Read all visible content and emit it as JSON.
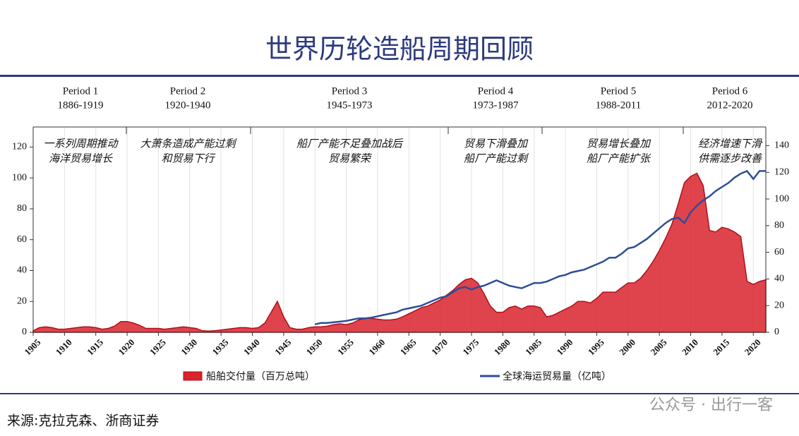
{
  "chart_data": {
    "type": "area_line",
    "title": "世界历轮造船周期回顾",
    "source": "来源:克拉克森、浙商证券",
    "watermark": "公众号 · 出行一客",
    "periods": [
      {
        "name": "Period 1",
        "range": "1886-1919",
        "note": [
          "一系列周期推动",
          "海洋贸易增长"
        ]
      },
      {
        "name": "Period 2",
        "range": "1920-1940",
        "note": [
          "大萧条造成产能过剩",
          "和贸易下行"
        ]
      },
      {
        "name": "Period 3",
        "range": "1945-1973",
        "note": [
          "船厂产能不足叠加战后",
          "贸易繁荣"
        ]
      },
      {
        "name": "Period 4",
        "range": "1973-1987",
        "note": [
          "贸易下滑叠加",
          "船厂产能过剩"
        ]
      },
      {
        "name": "Period 5",
        "range": "1988-2011",
        "note": [
          "贸易增长叠加",
          "船厂产能扩张"
        ]
      },
      {
        "name": "Period 6",
        "range": "2012-2020",
        "note": [
          "经济增速下滑",
          "供需逐步改善"
        ]
      }
    ],
    "x": [
      1905,
      1906,
      1907,
      1908,
      1909,
      1910,
      1911,
      1912,
      1913,
      1914,
      1915,
      1916,
      1917,
      1918,
      1919,
      1920,
      1921,
      1922,
      1923,
      1924,
      1925,
      1926,
      1927,
      1928,
      1929,
      1930,
      1931,
      1932,
      1933,
      1934,
      1935,
      1936,
      1937,
      1938,
      1939,
      1940,
      1941,
      1942,
      1943,
      1944,
      1945,
      1946,
      1947,
      1948,
      1949,
      1950,
      1951,
      1952,
      1953,
      1954,
      1955,
      1956,
      1957,
      1958,
      1959,
      1960,
      1961,
      1962,
      1963,
      1964,
      1965,
      1966,
      1967,
      1968,
      1969,
      1970,
      1971,
      1972,
      1973,
      1974,
      1975,
      1976,
      1977,
      1978,
      1979,
      1980,
      1981,
      1982,
      1983,
      1984,
      1985,
      1986,
      1987,
      1988,
      1989,
      1990,
      1991,
      1992,
      1993,
      1994,
      1995,
      1996,
      1997,
      1998,
      1999,
      2000,
      2001,
      2002,
      2003,
      2004,
      2005,
      2006,
      2007,
      2008,
      2009,
      2010,
      2011,
      2012,
      2013,
      2014,
      2015,
      2016,
      2017,
      2018,
      2019,
      2020,
      2021,
      2022
    ],
    "series": [
      {
        "name": "船舶交付量（百万总吨）",
        "color": "#d9232d",
        "kind": "area",
        "values": [
          1,
          3,
          3.5,
          3,
          2,
          2,
          2.5,
          3,
          3.5,
          3.5,
          3,
          2,
          2.5,
          4,
          7,
          7,
          6,
          4.5,
          2.5,
          2.5,
          2.5,
          2,
          2.5,
          3,
          3.5,
          3,
          2.5,
          1,
          0.8,
          1,
          1.5,
          2,
          2.5,
          3,
          3,
          2.5,
          3,
          6,
          13,
          20,
          10,
          3,
          2,
          2,
          3,
          3.5,
          3.5,
          4,
          5,
          5.5,
          5,
          6,
          8,
          9,
          9,
          8.5,
          8,
          8,
          8.5,
          10,
          12,
          14,
          16,
          17,
          19,
          21,
          24,
          27,
          31,
          34,
          35,
          32,
          25,
          17,
          13,
          13,
          16,
          17,
          15,
          17,
          17,
          16,
          10,
          11,
          13,
          15,
          17,
          20,
          20,
          19,
          22,
          26,
          26,
          26,
          29,
          32,
          32,
          35,
          40,
          46,
          53,
          61,
          70,
          83,
          97,
          101,
          103,
          95,
          66,
          65,
          68,
          67,
          65,
          62,
          33,
          31,
          33,
          34
        ]
      },
      {
        "name": "全球海运贸易量（亿吨）",
        "color": "#2f4d96",
        "kind": "line",
        "axis": "y2",
        "values": [
          null,
          null,
          null,
          null,
          null,
          null,
          null,
          null,
          null,
          null,
          null,
          null,
          null,
          null,
          null,
          null,
          null,
          null,
          null,
          null,
          null,
          null,
          null,
          null,
          null,
          null,
          null,
          null,
          null,
          null,
          null,
          null,
          null,
          null,
          null,
          null,
          null,
          null,
          null,
          null,
          null,
          null,
          null,
          null,
          null,
          6,
          7,
          7,
          7.5,
          8,
          8.5,
          9.5,
          10.5,
          10.5,
          11,
          12,
          13,
          14,
          15,
          17,
          18,
          19,
          20,
          22,
          24,
          26,
          27,
          30,
          33,
          34,
          32,
          34,
          35,
          37,
          39,
          37,
          35,
          34,
          33,
          35,
          37,
          37,
          38,
          40,
          42,
          43,
          45,
          46,
          47,
          49,
          51,
          53,
          56,
          56,
          59,
          63,
          64,
          67,
          70,
          74,
          78,
          82,
          85,
          86,
          82,
          90,
          95,
          99,
          102,
          106,
          109,
          112,
          116,
          119,
          121,
          115,
          121,
          121
        ]
      }
    ],
    "xlim": [
      1905,
      2022
    ],
    "xticks": [
      1905,
      1910,
      1915,
      1920,
      1925,
      1930,
      1935,
      1940,
      1945,
      1950,
      1955,
      1960,
      1965,
      1970,
      1975,
      1980,
      1985,
      1990,
      1995,
      2000,
      2005,
      2010,
      2015,
      2020
    ],
    "ylim": [
      0,
      133
    ],
    "yticks": [
      0,
      20,
      40,
      60,
      80,
      100,
      120
    ],
    "y2lim": [
      0,
      154
    ],
    "y2ticks": [
      0,
      20,
      40,
      60,
      80,
      100,
      120,
      140
    ],
    "grid": true
  }
}
